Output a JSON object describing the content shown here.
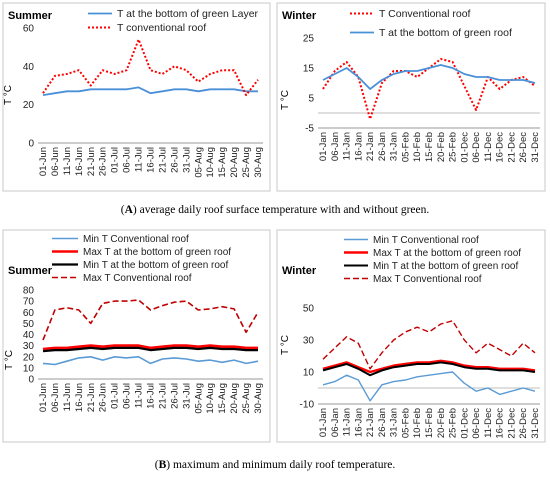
{
  "figure": {
    "caption_a_letter": "A",
    "caption_a_text": " average daily roof surface temperature with and without green.",
    "caption_b_letter": "B",
    "caption_b_text": " maximum and minimum daily roof temperature."
  },
  "chart_data": [
    {
      "id": "a-summer",
      "type": "line",
      "title": "Summer",
      "xlabel": "",
      "ylabel": "T °C",
      "ylim": [
        0,
        60
      ],
      "yticks": [
        0,
        20,
        40,
        60
      ],
      "categories": [
        "01-Jun",
        "06-Jun",
        "11-Jun",
        "16-Jun",
        "21-Jun",
        "26-Jun",
        "01-Jul",
        "06-Jul",
        "11-Jul",
        "16-Jul",
        "21-Jul",
        "26-Jul",
        "31-Jul",
        "05-Aug",
        "10-Aug",
        "15-Aug",
        "20-Aug",
        "25-Aug",
        "30-Aug"
      ],
      "grid": false,
      "legend": "top",
      "series": [
        {
          "name": "T at the bottom of green Layer",
          "color": "#4a90d9",
          "dash": "solid",
          "values": [
            25,
            26,
            27,
            27,
            28,
            28,
            28,
            28,
            29,
            26,
            27,
            28,
            28,
            27,
            28,
            28,
            28,
            27,
            27
          ]
        },
        {
          "name": "T conventional roof",
          "color": "#ff0000",
          "dash": "dotted",
          "values": [
            26,
            35,
            36,
            38,
            30,
            38,
            36,
            38,
            54,
            38,
            36,
            40,
            38,
            32,
            36,
            38,
            38,
            25,
            33
          ]
        }
      ]
    },
    {
      "id": "a-winter",
      "type": "line",
      "title": "Winter",
      "xlabel": "",
      "ylabel": "T °C",
      "ylim": [
        -5,
        25
      ],
      "yticks": [
        -5,
        5,
        15,
        25
      ],
      "categories": [
        "01-Jan",
        "06-Jan",
        "11-Jan",
        "16-Jan",
        "21-Jan",
        "26-Jan",
        "31-Jan",
        "05-Feb",
        "10-Feb",
        "15-Feb",
        "20-Feb",
        "25-Feb",
        "01-Dec",
        "06-Dec",
        "11-Dec",
        "16-Dec",
        "21-Dec",
        "26-Dec",
        "31-Dec"
      ],
      "grid": false,
      "legend": "top",
      "series": [
        {
          "name": "T Conventional roof",
          "color": "#ff0000",
          "dash": "dotted",
          "values": [
            8,
            14,
            17,
            12,
            -2,
            10,
            14,
            14,
            12,
            15,
            18,
            17,
            9,
            1,
            12,
            8,
            11,
            12,
            9
          ]
        },
        {
          "name": "T at the bottom of green roof",
          "color": "#4a90d9",
          "dash": "solid",
          "values": [
            11,
            13,
            15,
            12,
            8,
            11,
            13,
            14,
            14,
            15,
            16,
            15,
            13,
            12,
            12,
            11,
            11,
            11,
            10
          ]
        }
      ]
    },
    {
      "id": "b-summer",
      "type": "line",
      "title": "Summer",
      "xlabel": "",
      "ylabel": "T °C",
      "ylim": [
        0,
        80
      ],
      "yticks": [
        0,
        10,
        20,
        30,
        40,
        50,
        60,
        70,
        80
      ],
      "categories": [
        "01-Jun",
        "06-Jun",
        "11-Jun",
        "16-Jun",
        "21-Jun",
        "26-Jun",
        "01-Jul",
        "06-Jul",
        "11-Jul",
        "16-Jul",
        "21-Jul",
        "26-Jul",
        "31-Jul",
        "05-Aug",
        "10-Aug",
        "15-Aug",
        "20-Aug",
        "25-Aug",
        "30-Aug"
      ],
      "grid": false,
      "legend": "top",
      "series": [
        {
          "name": "Min T Conventional roof",
          "color": "#5b9bd5",
          "dash": "solid",
          "width": 1.6,
          "values": [
            14,
            13,
            16,
            19,
            20,
            17,
            20,
            19,
            20,
            14,
            18,
            19,
            18,
            16,
            17,
            15,
            17,
            14,
            16
          ]
        },
        {
          "name": "Max T at the bottom of green roof",
          "color": "#ff0000",
          "dash": "solid",
          "width": 2.6,
          "values": [
            27,
            28,
            28,
            29,
            30,
            29,
            30,
            30,
            30,
            28,
            29,
            30,
            30,
            29,
            30,
            29,
            29,
            28,
            28
          ]
        },
        {
          "name": "Min T at the bottom of green roof",
          "color": "#000000",
          "dash": "solid",
          "width": 2.2,
          "values": [
            25,
            26,
            26,
            27,
            28,
            27,
            28,
            28,
            28,
            26,
            27,
            28,
            28,
            27,
            28,
            27,
            27,
            26,
            26
          ]
        },
        {
          "name": "Max T Conventional roof",
          "color": "#c00000",
          "dash": "dashed",
          "width": 1.6,
          "values": [
            35,
            62,
            64,
            62,
            50,
            68,
            70,
            70,
            71,
            62,
            66,
            69,
            70,
            62,
            63,
            65,
            63,
            42,
            60
          ]
        }
      ]
    },
    {
      "id": "b-winter",
      "type": "line",
      "title": "Winter",
      "xlabel": "",
      "ylabel": "T °C",
      "ylim": [
        -10,
        50
      ],
      "yticks": [
        -10,
        10,
        30,
        50
      ],
      "categories": [
        "01-Jan",
        "06-Jan",
        "11-Jan",
        "16-Jan",
        "21-Jan",
        "26-Jan",
        "31-Jan",
        "05-Feb",
        "10-Feb",
        "15-Feb",
        "20-Feb",
        "25-Feb",
        "01-Dec",
        "06-Dec",
        "11-Dec",
        "16-Dec",
        "21-Dec",
        "26-Dec",
        "31-Dec"
      ],
      "grid": false,
      "legend": "top",
      "series": [
        {
          "name": "Min T Conventional roof",
          "color": "#5b9bd5",
          "dash": "solid",
          "width": 1.4,
          "values": [
            2,
            4,
            8,
            5,
            -8,
            2,
            4,
            5,
            7,
            8,
            9,
            10,
            3,
            -2,
            0,
            -4,
            -2,
            0,
            -2
          ]
        },
        {
          "name": "Max T at the bottom of green roof",
          "color": "#ff0000",
          "dash": "solid",
          "width": 2.4,
          "values": [
            12,
            14,
            16,
            13,
            10,
            12,
            14,
            15,
            16,
            16,
            17,
            16,
            14,
            13,
            13,
            12,
            12,
            12,
            11
          ]
        },
        {
          "name": "Min T at the bottom of green roof",
          "color": "#000000",
          "dash": "solid",
          "width": 2.0,
          "values": [
            11,
            13,
            15,
            12,
            8,
            11,
            13,
            14,
            15,
            15,
            16,
            15,
            13,
            12,
            12,
            11,
            11,
            11,
            10
          ]
        },
        {
          "name": "Max T Conventional roof",
          "color": "#c00000",
          "dash": "dashed",
          "width": 1.4,
          "values": [
            18,
            25,
            32,
            28,
            12,
            22,
            30,
            35,
            38,
            35,
            40,
            42,
            30,
            22,
            28,
            24,
            20,
            28,
            22
          ]
        }
      ]
    }
  ]
}
